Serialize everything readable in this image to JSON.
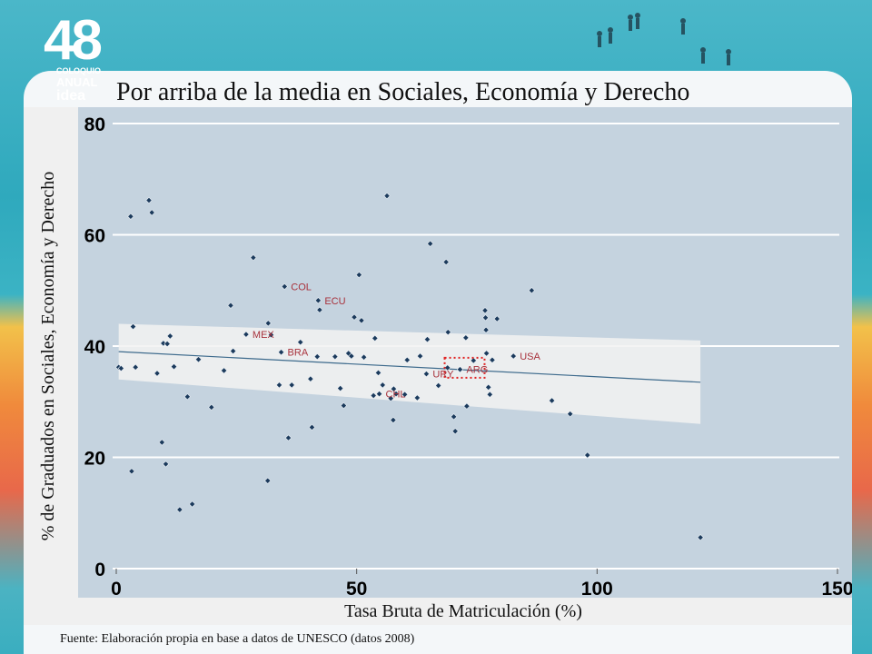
{
  "logo": {
    "number": "48",
    "line1": "COLOQUIO",
    "line2": "ANUAL",
    "line3": "idea"
  },
  "title": "Por arriba de la media en Sociales, Economía y Derecho",
  "source": "Fuente: Elaboración propia en base a datos de UNESCO (datos 2008)",
  "colors": {
    "plot_bg": "#c5d3df",
    "point": "#1b3a5c",
    "label": "#a8323c",
    "fit": "#3d6a8c",
    "band": "#f2f2f2",
    "highlight": "#e02020"
  },
  "chart_data": {
    "type": "scatter",
    "title": "Por arriba de la media en Sociales, Economía y Derecho",
    "xlabel": "Tasa Bruta de Matriculación (%)",
    "ylabel": "% de Graduados en Sociales, Economía y Derecho",
    "xlim": [
      0,
      150
    ],
    "ylim": [
      0,
      80
    ],
    "xticks": [
      "0",
      "50",
      "100",
      "150"
    ],
    "yticks": [
      "0",
      "20",
      "40",
      "60",
      "80"
    ],
    "grid": "horizontal",
    "points": [
      [
        0.5,
        36.2
      ],
      [
        1.0,
        36.0
      ],
      [
        3.0,
        63.3
      ],
      [
        3.5,
        43.5
      ],
      [
        3.2,
        17.5
      ],
      [
        4.0,
        36.2
      ],
      [
        6.8,
        66.2
      ],
      [
        7.4,
        64.0
      ],
      [
        8.5,
        35.1
      ],
      [
        9.5,
        22.7
      ],
      [
        9.8,
        40.5
      ],
      [
        10.3,
        18.8
      ],
      [
        10.6,
        40.4
      ],
      [
        11.2,
        41.8
      ],
      [
        12.0,
        36.3
      ],
      [
        13.2,
        10.6
      ],
      [
        14.8,
        30.9
      ],
      [
        15.8,
        11.6
      ],
      [
        17.1,
        37.6
      ],
      [
        19.8,
        29.0
      ],
      [
        22.4,
        35.6
      ],
      [
        23.8,
        47.3
      ],
      [
        24.3,
        39.1
      ],
      [
        27.0,
        42.1
      ],
      [
        28.5,
        55.9
      ],
      [
        31.5,
        15.8
      ],
      [
        31.6,
        44.1
      ],
      [
        32.2,
        42.0
      ],
      [
        33.9,
        33.0
      ],
      [
        34.3,
        38.9
      ],
      [
        35.0,
        50.7
      ],
      [
        35.8,
        23.5
      ],
      [
        36.5,
        33.0
      ],
      [
        38.3,
        40.7
      ],
      [
        40.4,
        34.1
      ],
      [
        40.7,
        25.4
      ],
      [
        41.8,
        38.1
      ],
      [
        42.0,
        48.2
      ],
      [
        42.3,
        46.5
      ],
      [
        45.5,
        38.1
      ],
      [
        46.6,
        32.4
      ],
      [
        47.3,
        29.3
      ],
      [
        48.3,
        38.7
      ],
      [
        48.9,
        38.2
      ],
      [
        49.5,
        45.2
      ],
      [
        50.5,
        52.8
      ],
      [
        51.0,
        44.6
      ],
      [
        51.5,
        38.0
      ],
      [
        53.5,
        31.1
      ],
      [
        53.8,
        41.4
      ],
      [
        54.5,
        35.2
      ],
      [
        54.7,
        31.4
      ],
      [
        55.4,
        33.0
      ],
      [
        56.3,
        67.0
      ],
      [
        57.1,
        30.6
      ],
      [
        57.6,
        26.7
      ],
      [
        57.7,
        32.3
      ],
      [
        58.2,
        31.4
      ],
      [
        60.0,
        31.3
      ],
      [
        60.5,
        37.5
      ],
      [
        62.6,
        30.7
      ],
      [
        63.2,
        38.2
      ],
      [
        64.5,
        35.0
      ],
      [
        64.7,
        41.2
      ],
      [
        65.3,
        58.4
      ],
      [
        67.0,
        32.9
      ],
      [
        68.6,
        55.1
      ],
      [
        68.9,
        36.1
      ],
      [
        69.0,
        42.5
      ],
      [
        70.2,
        27.3
      ],
      [
        70.5,
        24.7
      ],
      [
        71.5,
        35.8
      ],
      [
        72.7,
        41.5
      ],
      [
        72.9,
        29.2
      ],
      [
        74.3,
        37.4
      ],
      [
        76.7,
        46.4
      ],
      [
        76.8,
        45.1
      ],
      [
        76.9,
        42.9
      ],
      [
        77.0,
        38.7
      ],
      [
        77.4,
        32.6
      ],
      [
        77.7,
        31.3
      ],
      [
        78.2,
        37.5
      ],
      [
        79.2,
        44.9
      ],
      [
        82.6,
        38.2
      ],
      [
        86.4,
        50.0
      ],
      [
        90.6,
        30.2
      ],
      [
        94.4,
        27.8
      ],
      [
        98.0,
        20.4
      ],
      [
        121.5,
        5.6
      ]
    ],
    "annotations": [
      {
        "label": "COL",
        "x": 35.0,
        "y": 50.7
      },
      {
        "label": "ECU",
        "x": 42.0,
        "y": 48.2
      },
      {
        "label": "MEX",
        "x": 27.0,
        "y": 42.1
      },
      {
        "label": "BRA",
        "x": 34.3,
        "y": 38.9
      },
      {
        "label": "ARG",
        "x": 71.5,
        "y": 35.8
      },
      {
        "label": "URY",
        "x": 64.5,
        "y": 35.0
      },
      {
        "label": "CHL",
        "x": 54.7,
        "y": 31.4
      },
      {
        "label": "USA",
        "x": 82.6,
        "y": 38.2
      }
    ],
    "highlight": {
      "label": "ARG",
      "x": [
        68.3,
        76.6
      ],
      "y": [
        34.3,
        37.9
      ]
    },
    "fit_line": {
      "x": [
        0.5,
        121.5
      ],
      "y": [
        39.0,
        33.5
      ]
    },
    "confidence_band": {
      "x": [
        0.5,
        121.5
      ],
      "upper": [
        44.0,
        41.0
      ],
      "lower": [
        34.0,
        26.0
      ]
    }
  }
}
